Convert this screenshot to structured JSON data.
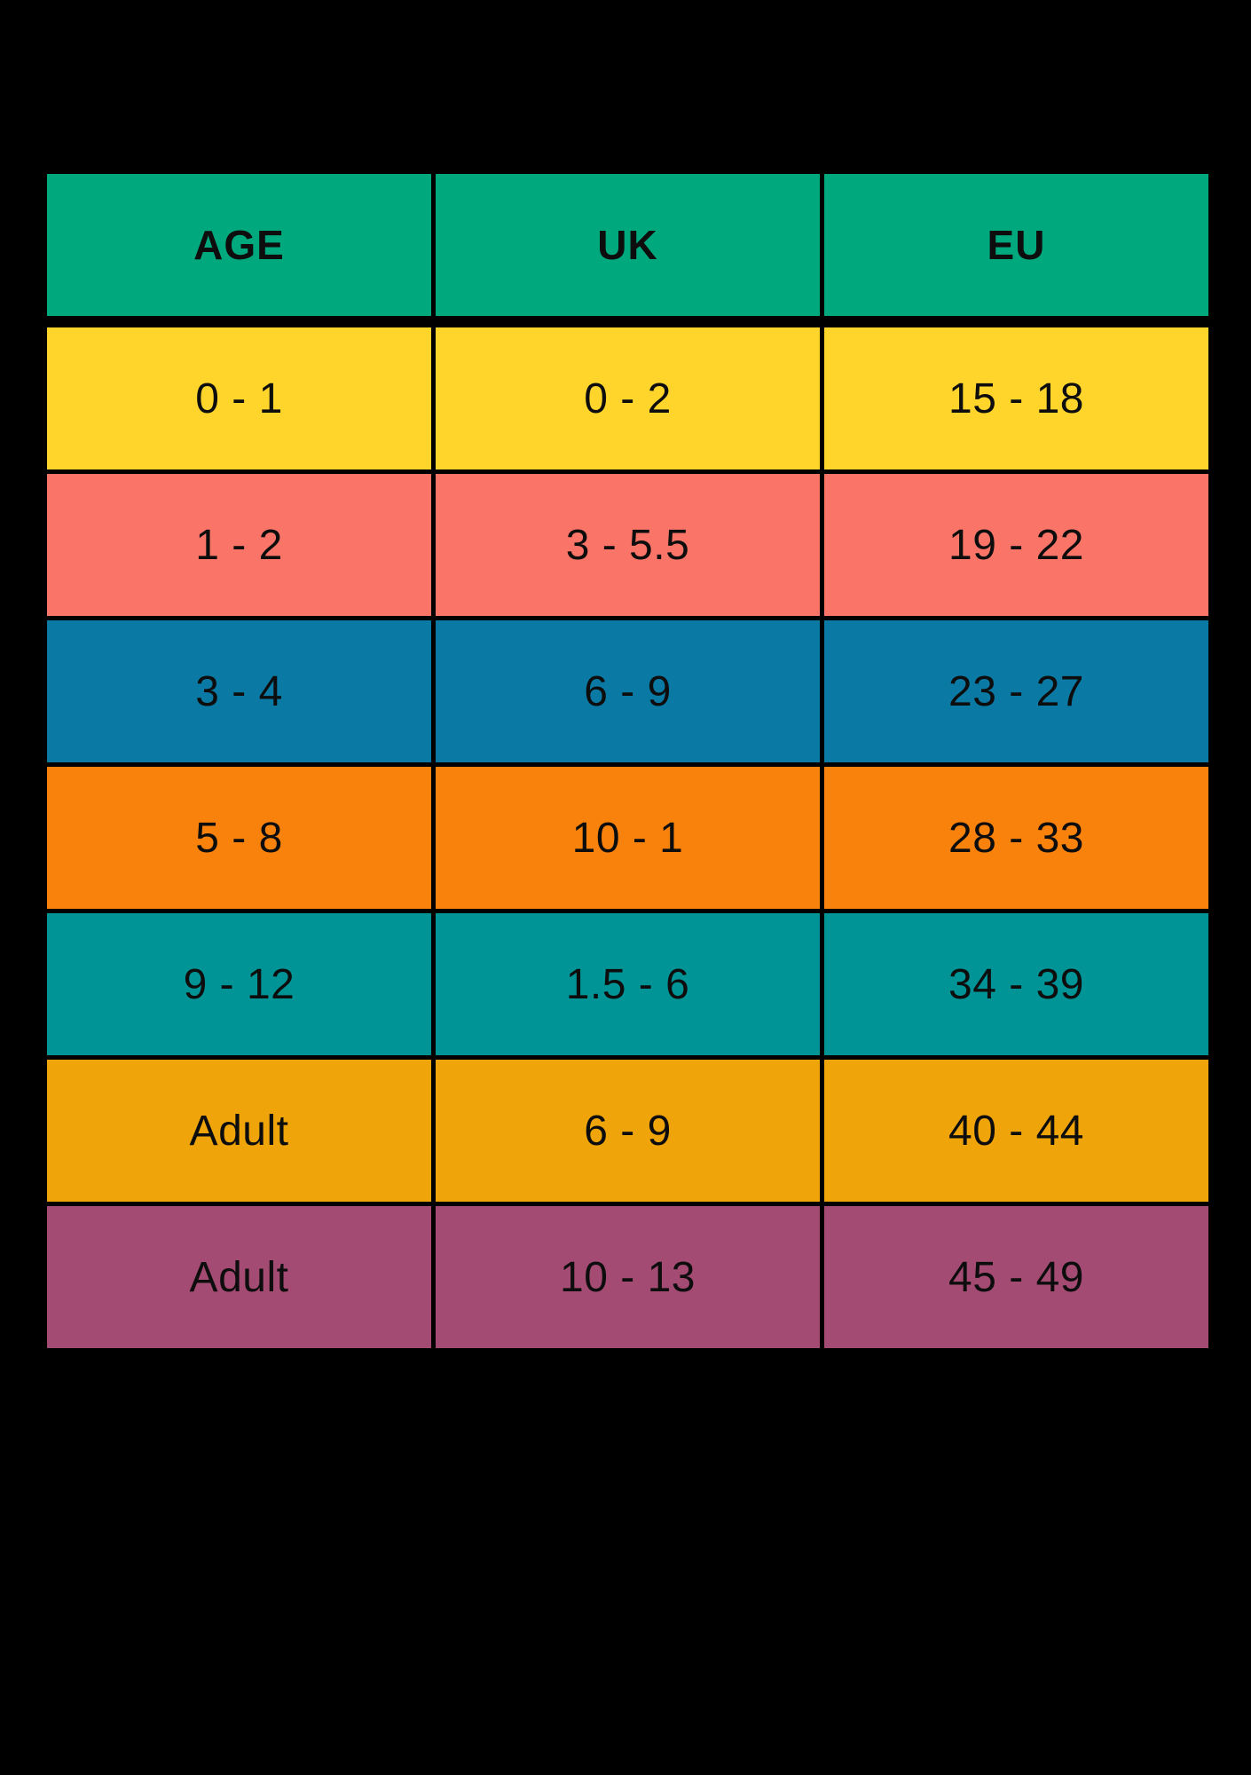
{
  "page": {
    "background_color": "#000000",
    "text_color": "#0d0d0d"
  },
  "table": {
    "header": {
      "bg": "#00A87E",
      "labels": [
        "AGE",
        "UK",
        "EU"
      ]
    },
    "rows": [
      {
        "bg": "#FFD52B",
        "age": "0 - 1",
        "uk": "0 - 2",
        "eu": "15 - 18"
      },
      {
        "bg": "#FA7468",
        "age": "1 - 2",
        "uk": "3 - 5.5",
        "eu": "19 - 22"
      },
      {
        "bg": "#0A79A4",
        "age": "3 - 4",
        "uk": "6 - 9",
        "eu": "23 - 27"
      },
      {
        "bg": "#F8820C",
        "age": "5 - 8",
        "uk": "10 - 1",
        "eu": "28 - 33"
      },
      {
        "bg": "#009496",
        "age": "9 - 12",
        "uk": "1.5 - 6",
        "eu": "34 - 39"
      },
      {
        "bg": "#EFA40A",
        "age": "Adult",
        "uk": "6 - 9",
        "eu": "40 - 44"
      },
      {
        "bg": "#A44B73",
        "age": "Adult",
        "uk": "10 - 13",
        "eu": "45 - 49"
      }
    ]
  },
  "chart_data": {
    "type": "table",
    "title": "",
    "columns": [
      "AGE",
      "UK",
      "EU"
    ],
    "rows": [
      [
        "0 - 1",
        "0 - 2",
        "15 - 18"
      ],
      [
        "1 - 2",
        "3 - 5.5",
        "19 - 22"
      ],
      [
        "3 - 4",
        "6 - 9",
        "23 - 27"
      ],
      [
        "5 - 8",
        "10 - 1",
        "28 - 33"
      ],
      [
        "9 - 12",
        "1.5 - 6",
        "34 - 39"
      ],
      [
        "Adult",
        "6 - 9",
        "40 - 44"
      ],
      [
        "Adult",
        "10 - 13",
        "45 - 49"
      ]
    ],
    "header_color": "#00A87E",
    "row_colors": [
      "#FFD52B",
      "#FA7468",
      "#0A79A4",
      "#F8820C",
      "#009496",
      "#EFA40A",
      "#A44B73"
    ],
    "background_color": "#000000",
    "grid": "black gaps between cells"
  }
}
